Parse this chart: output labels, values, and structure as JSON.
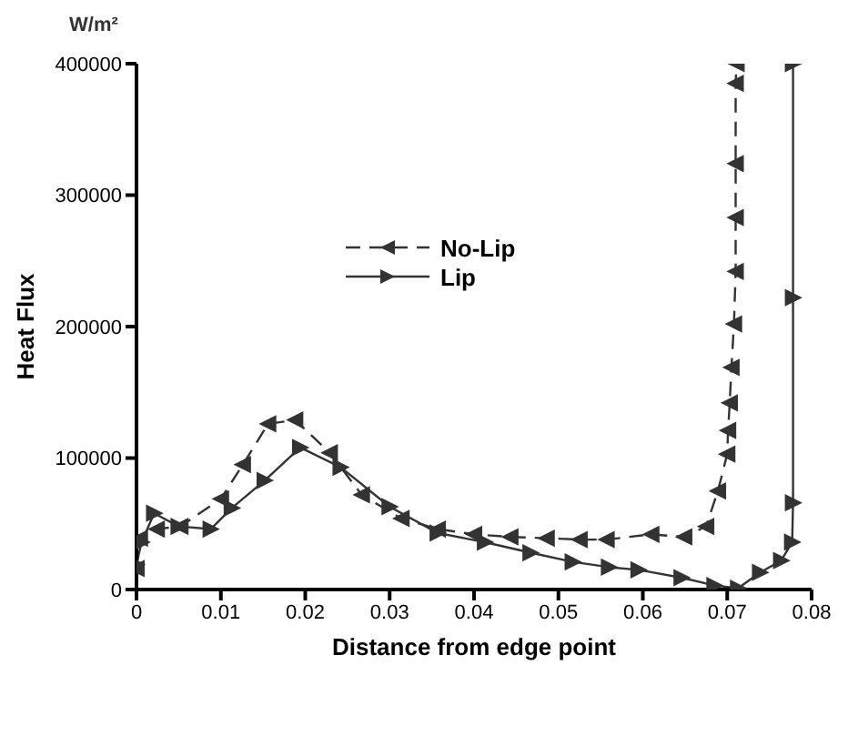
{
  "chart_data": {
    "type": "line",
    "xlabel": "Distance from edge point",
    "ylabel": "Heat Flux",
    "annotations": [
      "W/m²"
    ],
    "xlim": [
      0,
      0.08
    ],
    "xticks": [
      0,
      0.01,
      0.02,
      0.03,
      0.04,
      0.05,
      0.06,
      0.07,
      0.08
    ],
    "ylim": [
      0,
      400000
    ],
    "yticks": [
      0,
      100000,
      200000,
      300000,
      400000
    ],
    "grid": false,
    "legend": "top",
    "marker": "triangle",
    "series": [
      {
        "name": "No-Lip",
        "color": "#333333",
        "line_style": "dashed",
        "x": [
          0,
          0.0004,
          0.0024,
          0.0052,
          0.01,
          0.0126,
          0.0156,
          0.0188,
          0.0229,
          0.0267,
          0.0314,
          0.0357,
          0.04,
          0.0443,
          0.0486,
          0.0525,
          0.0557,
          0.061,
          0.0649,
          0.0675,
          0.0689,
          0.07,
          0.0701,
          0.0703,
          0.0705,
          0.0708,
          0.071,
          0.071,
          0.071,
          0.071,
          0.0711
        ],
        "values": [
          16000,
          39000,
          46000,
          48000,
          69000,
          95000,
          126000,
          129000,
          104000,
          72000,
          54000,
          46000,
          42000,
          40000,
          39000,
          38000,
          38000,
          42000,
          40000,
          48000,
          75000,
          103000,
          121000,
          142000,
          169000,
          202000,
          242000,
          283000,
          324000,
          385000,
          400000
        ]
      },
      {
        "name": "Lip",
        "color": "#333333",
        "line_style": "solid",
        "x": [
          0,
          0.0006,
          0.0021,
          0.005,
          0.0088,
          0.0113,
          0.0152,
          0.0194,
          0.0242,
          0.03,
          0.0357,
          0.0413,
          0.0467,
          0.0517,
          0.056,
          0.0595,
          0.0646,
          0.0685,
          0.0713,
          0.0739,
          0.0764,
          0.0777,
          0.0778,
          0.0778,
          0.0778
        ],
        "values": [
          19000,
          36000,
          58000,
          48000,
          46000,
          62000,
          83000,
          108000,
          93000,
          63000,
          43000,
          36000,
          28000,
          21000,
          17000,
          15000,
          9000,
          3000,
          1000,
          13000,
          22000,
          36000,
          66000,
          222000,
          400000
        ]
      }
    ]
  }
}
